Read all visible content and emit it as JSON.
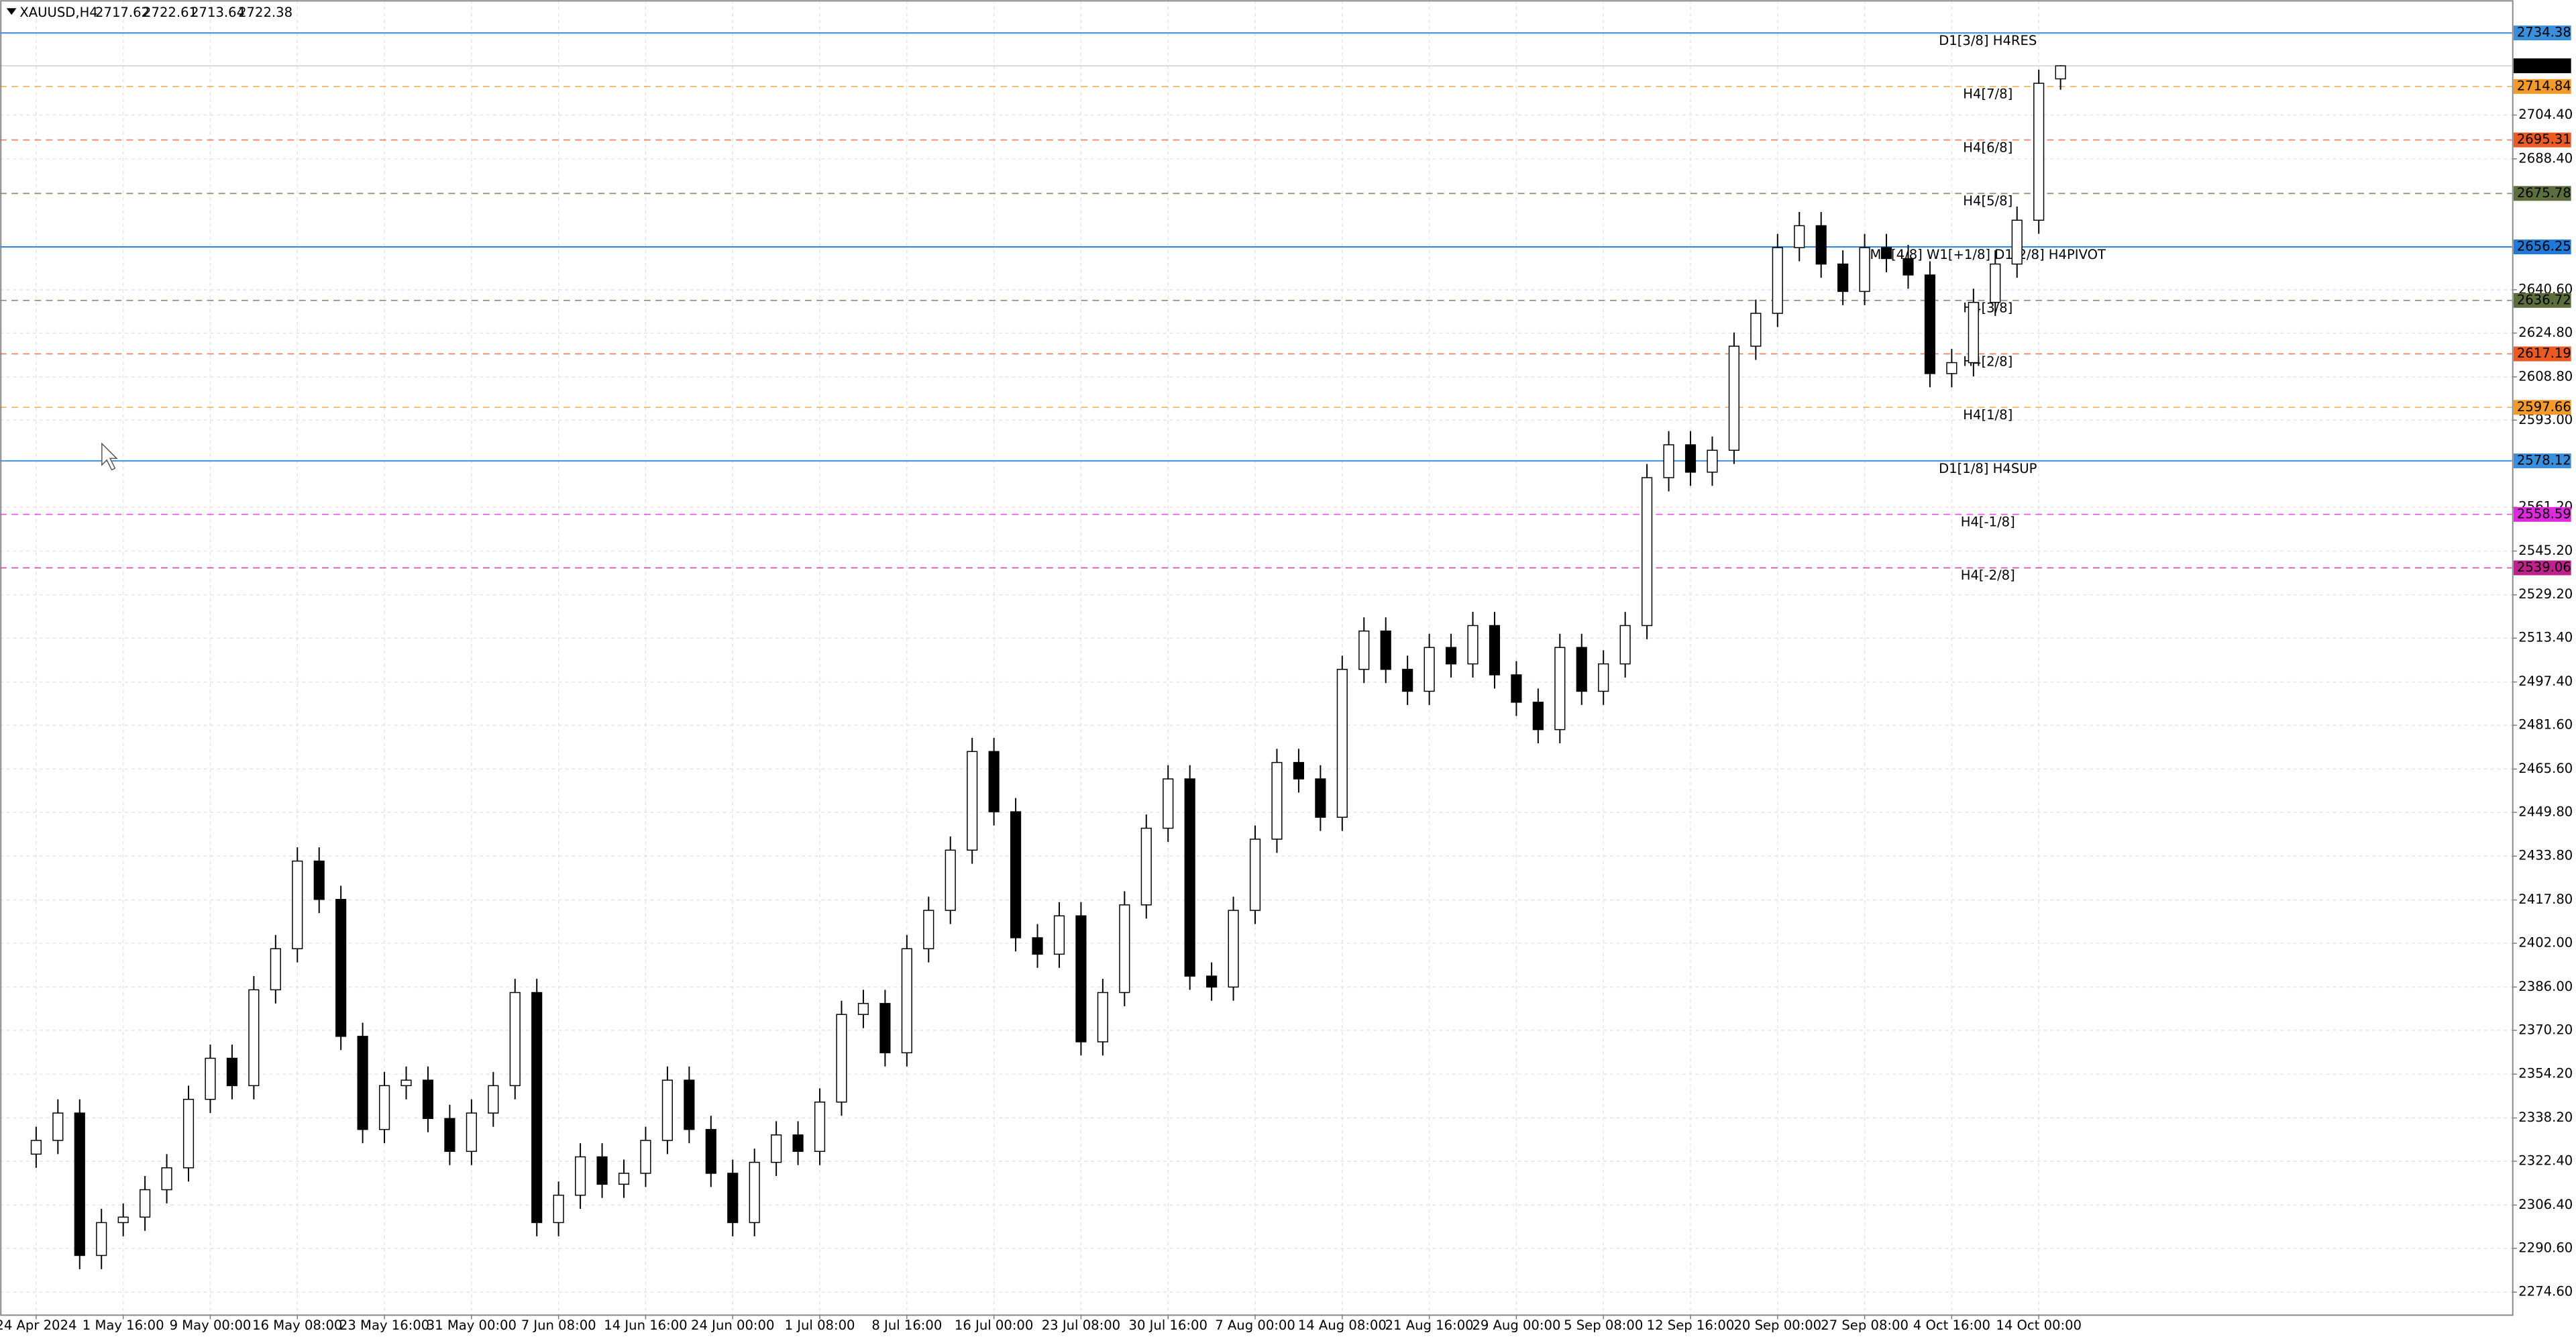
{
  "chart_data": {
    "type": "candlestick",
    "symbol": "XAUUSD,H4",
    "categories": [
      "24 Apr 2024",
      null,
      null,
      null,
      "1 May 16:00",
      null,
      null,
      null,
      "9 May 00:00",
      null,
      null,
      null,
      "16 May 08:00",
      null,
      null,
      null,
      "23 May 16:00",
      null,
      null,
      null,
      "31 May 00:00",
      null,
      null,
      null,
      "7 Jun 08:00",
      null,
      null,
      null,
      "14 Jun 16:00",
      null,
      null,
      null,
      "24 Jun 00:00",
      null,
      null,
      null,
      "1 Jul 08:00",
      null,
      null,
      null,
      "8 Jul 16:00",
      null,
      null,
      null,
      "16 Jul 00:00",
      null,
      null,
      null,
      "23 Jul 08:00",
      null,
      null,
      null,
      "30 Jul 16:00",
      null,
      null,
      null,
      "7 Aug 00:00",
      null,
      null,
      null,
      "14 Aug 08:00",
      null,
      null,
      null,
      "21 Aug 16:00",
      null,
      null,
      null,
      "29 Aug 00:00",
      null,
      null,
      null,
      "5 Sep 08:00",
      null,
      null,
      null,
      "12 Sep 16:00",
      null,
      null,
      null,
      "20 Sep 00:00",
      null,
      null,
      null,
      "27 Sep 08:00",
      null,
      null,
      null,
      "4 Oct 16:00",
      null,
      null,
      null,
      "14 Oct 00:00",
      null
    ],
    "open": [
      2325,
      2330,
      2340,
      2288,
      2300,
      2302,
      2312,
      2320,
      2345,
      2360,
      2350,
      2385,
      2400,
      2432,
      2418,
      2368,
      2334,
      2350,
      2352,
      2338,
      2326,
      2340,
      2350,
      2384,
      2300,
      2310,
      2324,
      2314,
      2318,
      2330,
      2352,
      2334,
      2318,
      2300,
      2322,
      2332,
      2326,
      2344,
      2376,
      2380,
      2362,
      2400,
      2414,
      2436,
      2472,
      2450,
      2404,
      2398,
      2412,
      2366,
      2384,
      2416,
      2444,
      2462,
      2390,
      2386,
      2414,
      2440,
      2468,
      2462,
      2448,
      2502,
      2516,
      2502,
      2494,
      2510,
      2504,
      2518,
      2500,
      2490,
      2480,
      2510,
      2494,
      2504,
      2518,
      2572,
      2584,
      2574,
      2582,
      2620,
      2632,
      2656,
      2664,
      2650,
      2640,
      2656,
      2652,
      2646,
      2610,
      2614,
      2636,
      2650,
      2666,
      2717.62
    ],
    "high": [
      2335,
      2345,
      2345,
      2305,
      2307,
      2317,
      2325,
      2350,
      2365,
      2365,
      2390,
      2405,
      2437,
      2437,
      2423,
      2373,
      2355,
      2357,
      2357,
      2343,
      2345,
      2355,
      2389,
      2389,
      2315,
      2329,
      2329,
      2323,
      2335,
      2357,
      2357,
      2339,
      2323,
      2327,
      2337,
      2337,
      2349,
      2381,
      2385,
      2385,
      2405,
      2419,
      2441,
      2477,
      2477,
      2455,
      2409,
      2417,
      2417,
      2389,
      2421,
      2449,
      2467,
      2467,
      2395,
      2419,
      2445,
      2473,
      2473,
      2467,
      2507,
      2521,
      2521,
      2507,
      2515,
      2515,
      2523,
      2523,
      2505,
      2495,
      2515,
      2515,
      2509,
      2523,
      2577,
      2589,
      2589,
      2587,
      2625,
      2637,
      2661,
      2669,
      2669,
      2655,
      2661,
      2661,
      2657,
      2651,
      2619,
      2641,
      2655,
      2671,
      2721,
      2722.61
    ],
    "low": [
      2320,
      2325,
      2283,
      2283,
      2295,
      2297,
      2307,
      2315,
      2340,
      2345,
      2345,
      2380,
      2395,
      2413,
      2363,
      2329,
      2329,
      2345,
      2333,
      2321,
      2321,
      2335,
      2345,
      2295,
      2295,
      2305,
      2309,
      2309,
      2313,
      2325,
      2329,
      2313,
      2295,
      2295,
      2317,
      2321,
      2321,
      2339,
      2371,
      2357,
      2357,
      2395,
      2409,
      2431,
      2445,
      2399,
      2393,
      2393,
      2361,
      2361,
      2379,
      2411,
      2439,
      2385,
      2381,
      2381,
      2409,
      2435,
      2457,
      2443,
      2443,
      2497,
      2497,
      2489,
      2489,
      2499,
      2499,
      2495,
      2485,
      2475,
      2475,
      2489,
      2489,
      2499,
      2513,
      2567,
      2569,
      2569,
      2577,
      2615,
      2627,
      2651,
      2645,
      2635,
      2635,
      2647,
      2641,
      2605,
      2605,
      2609,
      2631,
      2645,
      2661,
      2713.64
    ],
    "close": [
      2330,
      2340,
      2288,
      2300,
      2302,
      2312,
      2320,
      2345,
      2360,
      2350,
      2385,
      2400,
      2432,
      2418,
      2368,
      2334,
      2350,
      2352,
      2338,
      2326,
      2340,
      2350,
      2384,
      2300,
      2310,
      2324,
      2314,
      2318,
      2330,
      2352,
      2334,
      2318,
      2300,
      2322,
      2332,
      2326,
      2344,
      2376,
      2380,
      2362,
      2400,
      2414,
      2436,
      2472,
      2450,
      2404,
      2398,
      2412,
      2366,
      2384,
      2416,
      2444,
      2462,
      2390,
      2386,
      2414,
      2440,
      2468,
      2462,
      2448,
      2502,
      2516,
      2502,
      2494,
      2510,
      2504,
      2518,
      2500,
      2490,
      2480,
      2510,
      2494,
      2504,
      2518,
      2572,
      2584,
      2574,
      2582,
      2620,
      2632,
      2656,
      2664,
      2650,
      2640,
      2656,
      2652,
      2646,
      2610,
      2614,
      2636,
      2650,
      2666,
      2716,
      2722.38
    ],
    "ylim": [
      2266.5,
      2746.4
    ],
    "yticks": [
      {
        "value": 2274.6,
        "label": "2274.60"
      },
      {
        "value": 2290.6,
        "label": "2290.60"
      },
      {
        "value": 2306.4,
        "label": "2306.40"
      },
      {
        "value": 2322.4,
        "label": "2322.40"
      },
      {
        "value": 2338.2,
        "label": "2338.20"
      },
      {
        "value": 2354.2,
        "label": "2354.20"
      },
      {
        "value": 2370.2,
        "label": "2370.20"
      },
      {
        "value": 2386,
        "label": "2386.00"
      },
      {
        "value": 2402,
        "label": "2402.00"
      },
      {
        "value": 2417.8,
        "label": "2417.80"
      },
      {
        "value": 2433.8,
        "label": "2433.80"
      },
      {
        "value": 2449.8,
        "label": "2449.80"
      },
      {
        "value": 2465.6,
        "label": "2465.60"
      },
      {
        "value": 2481.6,
        "label": "2481.60"
      },
      {
        "value": 2497.4,
        "label": "2497.40"
      },
      {
        "value": 2513.4,
        "label": "2513.40"
      },
      {
        "value": 2529.2,
        "label": "2529.20"
      },
      {
        "value": 2545.2,
        "label": "2545.20"
      },
      {
        "value": 2561.2,
        "label": "2561.20"
      },
      {
        "value": 2593,
        "label": "2593.00"
      },
      {
        "value": 2608.8,
        "label": "2608.80"
      },
      {
        "value": 2624.8,
        "label": "2624.80"
      },
      {
        "value": 2640.6,
        "label": "2640.60"
      },
      {
        "value": 2688.4,
        "label": "2688.40"
      },
      {
        "value": 2704.4,
        "label": "2704.40"
      }
    ],
    "grid": true,
    "bull_color": "#ffffff",
    "bear_color": "#000000",
    "levels": [
      {
        "name": "D1[3/8] H4RES",
        "value": 2734.38,
        "color": "#3a8fdc",
        "style": "solid"
      },
      {
        "name": "H4[7/8]",
        "value": 2714.84,
        "color": "#f39a2a",
        "style": "dashed"
      },
      {
        "name": "H4[6/8]",
        "value": 2695.31,
        "color": "#ec5a24",
        "style": "dashed"
      },
      {
        "name": "H4[5/8]",
        "value": 2675.78,
        "color": "#5b6e3c",
        "style": "dashed"
      },
      {
        "name": "MN[4/8] W1[+1/8] D1[2/8] H4PIVOT",
        "value": 2656.25,
        "color": "#1f7ad8",
        "style": "solid"
      },
      {
        "name": "H4[3/8]",
        "value": 2636.72,
        "color": "#5b6e3c",
        "style": "dashed"
      },
      {
        "name": "H4[2/8]",
        "value": 2617.19,
        "color": "#ec5a24",
        "style": "dashed"
      },
      {
        "name": "H4[1/8]",
        "value": 2597.66,
        "color": "#f39a2a",
        "style": "dashed"
      },
      {
        "name": "D1[1/8] H4SUP",
        "value": 2578.12,
        "color": "#3a8fdc",
        "style": "solid"
      },
      {
        "name": "H4[-1/8]",
        "value": 2558.59,
        "color": "#e028de",
        "style": "dashed"
      },
      {
        "name": "H4[-2/8]",
        "value": 2539.06,
        "color": "#c0208c",
        "style": "dashed"
      }
    ]
  }
}
